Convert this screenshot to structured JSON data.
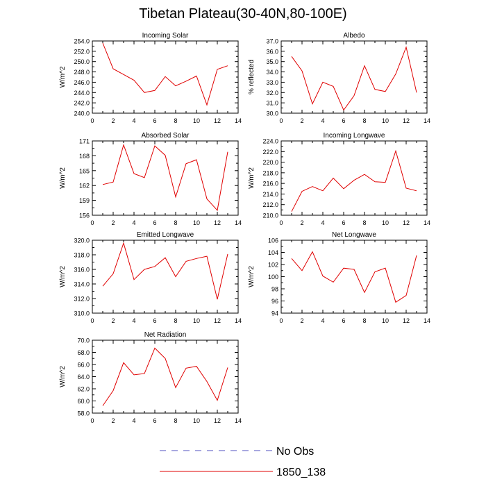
{
  "title": "Tibetan Plateau(30-40N,80-100E)",
  "legend": {
    "entries": [
      {
        "label": "No Obs",
        "color": "#5050c0",
        "dashed": true
      },
      {
        "label": "1850_138",
        "color": "#e00000",
        "dashed": false
      }
    ]
  },
  "chart_data": [
    {
      "type": "line",
      "title": "Incoming Solar",
      "xlabel": "",
      "ylabel": "W/m^2",
      "xlim": [
        0,
        14
      ],
      "ylim": [
        240.0,
        254.0
      ],
      "xticks": [
        0,
        2,
        4,
        6,
        8,
        10,
        12,
        14
      ],
      "yticks": [
        "240.0",
        "242.0",
        "244.0",
        "246.0",
        "248.0",
        "250.0",
        "252.0",
        "254.0"
      ],
      "x": [
        1,
        2,
        3,
        4,
        5,
        6,
        7,
        8,
        9,
        10,
        11,
        12,
        13
      ],
      "series": [
        {
          "name": "1850_138",
          "color": "#e00000",
          "values": [
            253.6,
            248.6,
            247.5,
            246.4,
            244.0,
            244.4,
            247.1,
            245.3,
            246.2,
            247.2,
            241.6,
            248.5,
            249.2
          ]
        }
      ]
    },
    {
      "type": "line",
      "title": "Albedo",
      "xlabel": "",
      "ylabel": "% reflected",
      "xlim": [
        0,
        14
      ],
      "ylim": [
        30.0,
        37.0
      ],
      "xticks": [
        0,
        2,
        4,
        6,
        8,
        10,
        12,
        14
      ],
      "yticks": [
        "30.0",
        "31.0",
        "32.0",
        "33.0",
        "34.0",
        "35.0",
        "36.0",
        "37.0"
      ],
      "x": [
        1,
        2,
        3,
        4,
        5,
        6,
        7,
        8,
        9,
        10,
        11,
        12,
        13
      ],
      "series": [
        {
          "name": "1850_138",
          "color": "#e00000",
          "values": [
            35.5,
            34.1,
            30.9,
            33.0,
            32.6,
            30.3,
            31.7,
            34.6,
            32.3,
            32.1,
            33.8,
            36.4,
            32.0
          ]
        }
      ]
    },
    {
      "type": "line",
      "title": "Absorbed Solar",
      "xlabel": "",
      "ylabel": "W/m^2",
      "xlim": [
        0,
        14
      ],
      "ylim": [
        156,
        171
      ],
      "xticks": [
        0,
        2,
        4,
        6,
        8,
        10,
        12,
        14
      ],
      "yticks": [
        "156",
        "159",
        "162",
        "165",
        "168",
        "171"
      ],
      "x": [
        1,
        2,
        3,
        4,
        5,
        6,
        7,
        8,
        9,
        10,
        11,
        12,
        13
      ],
      "series": [
        {
          "name": "1850_138",
          "color": "#e00000",
          "values": [
            162.2,
            162.7,
            170.2,
            164.4,
            163.6,
            170.0,
            168.1,
            159.7,
            166.4,
            167.2,
            159.3,
            157.0,
            168.8
          ]
        }
      ]
    },
    {
      "type": "line",
      "title": "Incoming Longwave",
      "xlabel": "",
      "ylabel": "W/m^2",
      "xlim": [
        0,
        14
      ],
      "ylim": [
        210.0,
        224.0
      ],
      "xticks": [
        0,
        2,
        4,
        6,
        8,
        10,
        12,
        14
      ],
      "yticks": [
        "210.0",
        "212.0",
        "214.0",
        "216.0",
        "218.0",
        "220.0",
        "222.0",
        "224.0"
      ],
      "x": [
        1,
        2,
        3,
        4,
        5,
        6,
        7,
        8,
        9,
        10,
        11,
        12,
        13
      ],
      "series": [
        {
          "name": "1850_138",
          "color": "#e00000",
          "values": [
            210.7,
            214.5,
            215.4,
            214.6,
            217.0,
            215.0,
            216.6,
            217.7,
            216.3,
            216.2,
            222.1,
            215.1,
            214.6
          ]
        }
      ]
    },
    {
      "type": "line",
      "title": "Emitted Longwave",
      "xlabel": "",
      "ylabel": "W/m^2",
      "xlim": [
        0,
        14
      ],
      "ylim": [
        310.0,
        320.0
      ],
      "xticks": [
        0,
        2,
        4,
        6,
        8,
        10,
        12,
        14
      ],
      "yticks": [
        "310.0",
        "312.0",
        "314.0",
        "316.0",
        "318.0",
        "320.0"
      ],
      "x": [
        1,
        2,
        3,
        4,
        5,
        6,
        7,
        8,
        9,
        10,
        11,
        12,
        13
      ],
      "series": [
        {
          "name": "1850_138",
          "color": "#e00000",
          "values": [
            313.7,
            315.4,
            319.6,
            314.6,
            316.0,
            316.4,
            317.6,
            315.0,
            317.1,
            317.5,
            317.8,
            311.9,
            318.1
          ]
        }
      ]
    },
    {
      "type": "line",
      "title": "Net Longwave",
      "xlabel": "",
      "ylabel": "W/m^2",
      "xlim": [
        0,
        14
      ],
      "ylim": [
        94,
        106
      ],
      "xticks": [
        0,
        2,
        4,
        6,
        8,
        10,
        12,
        14
      ],
      "yticks": [
        "94",
        "96",
        "98",
        "100",
        "102",
        "104",
        "106"
      ],
      "x": [
        1,
        2,
        3,
        4,
        5,
        6,
        7,
        8,
        9,
        10,
        11,
        12,
        13
      ],
      "series": [
        {
          "name": "1850_138",
          "color": "#e00000",
          "values": [
            103.0,
            101.0,
            104.1,
            100.1,
            99.1,
            101.4,
            101.2,
            97.4,
            100.8,
            101.4,
            95.8,
            96.9,
            103.5
          ]
        }
      ]
    },
    {
      "type": "line",
      "title": "Net Radiation",
      "xlabel": "",
      "ylabel": "W/m^2",
      "xlim": [
        0,
        14
      ],
      "ylim": [
        58.0,
        70.0
      ],
      "xticks": [
        0,
        2,
        4,
        6,
        8,
        10,
        12,
        14
      ],
      "yticks": [
        "58.0",
        "60.0",
        "62.0",
        "64.0",
        "66.0",
        "68.0",
        "70.0"
      ],
      "x": [
        1,
        2,
        3,
        4,
        5,
        6,
        7,
        8,
        9,
        10,
        11,
        12,
        13
      ],
      "series": [
        {
          "name": "1850_138",
          "color": "#e00000",
          "values": [
            59.2,
            61.7,
            66.3,
            64.3,
            64.5,
            68.7,
            67.0,
            62.2,
            65.4,
            65.7,
            63.2,
            60.1,
            65.5
          ]
        }
      ]
    }
  ]
}
